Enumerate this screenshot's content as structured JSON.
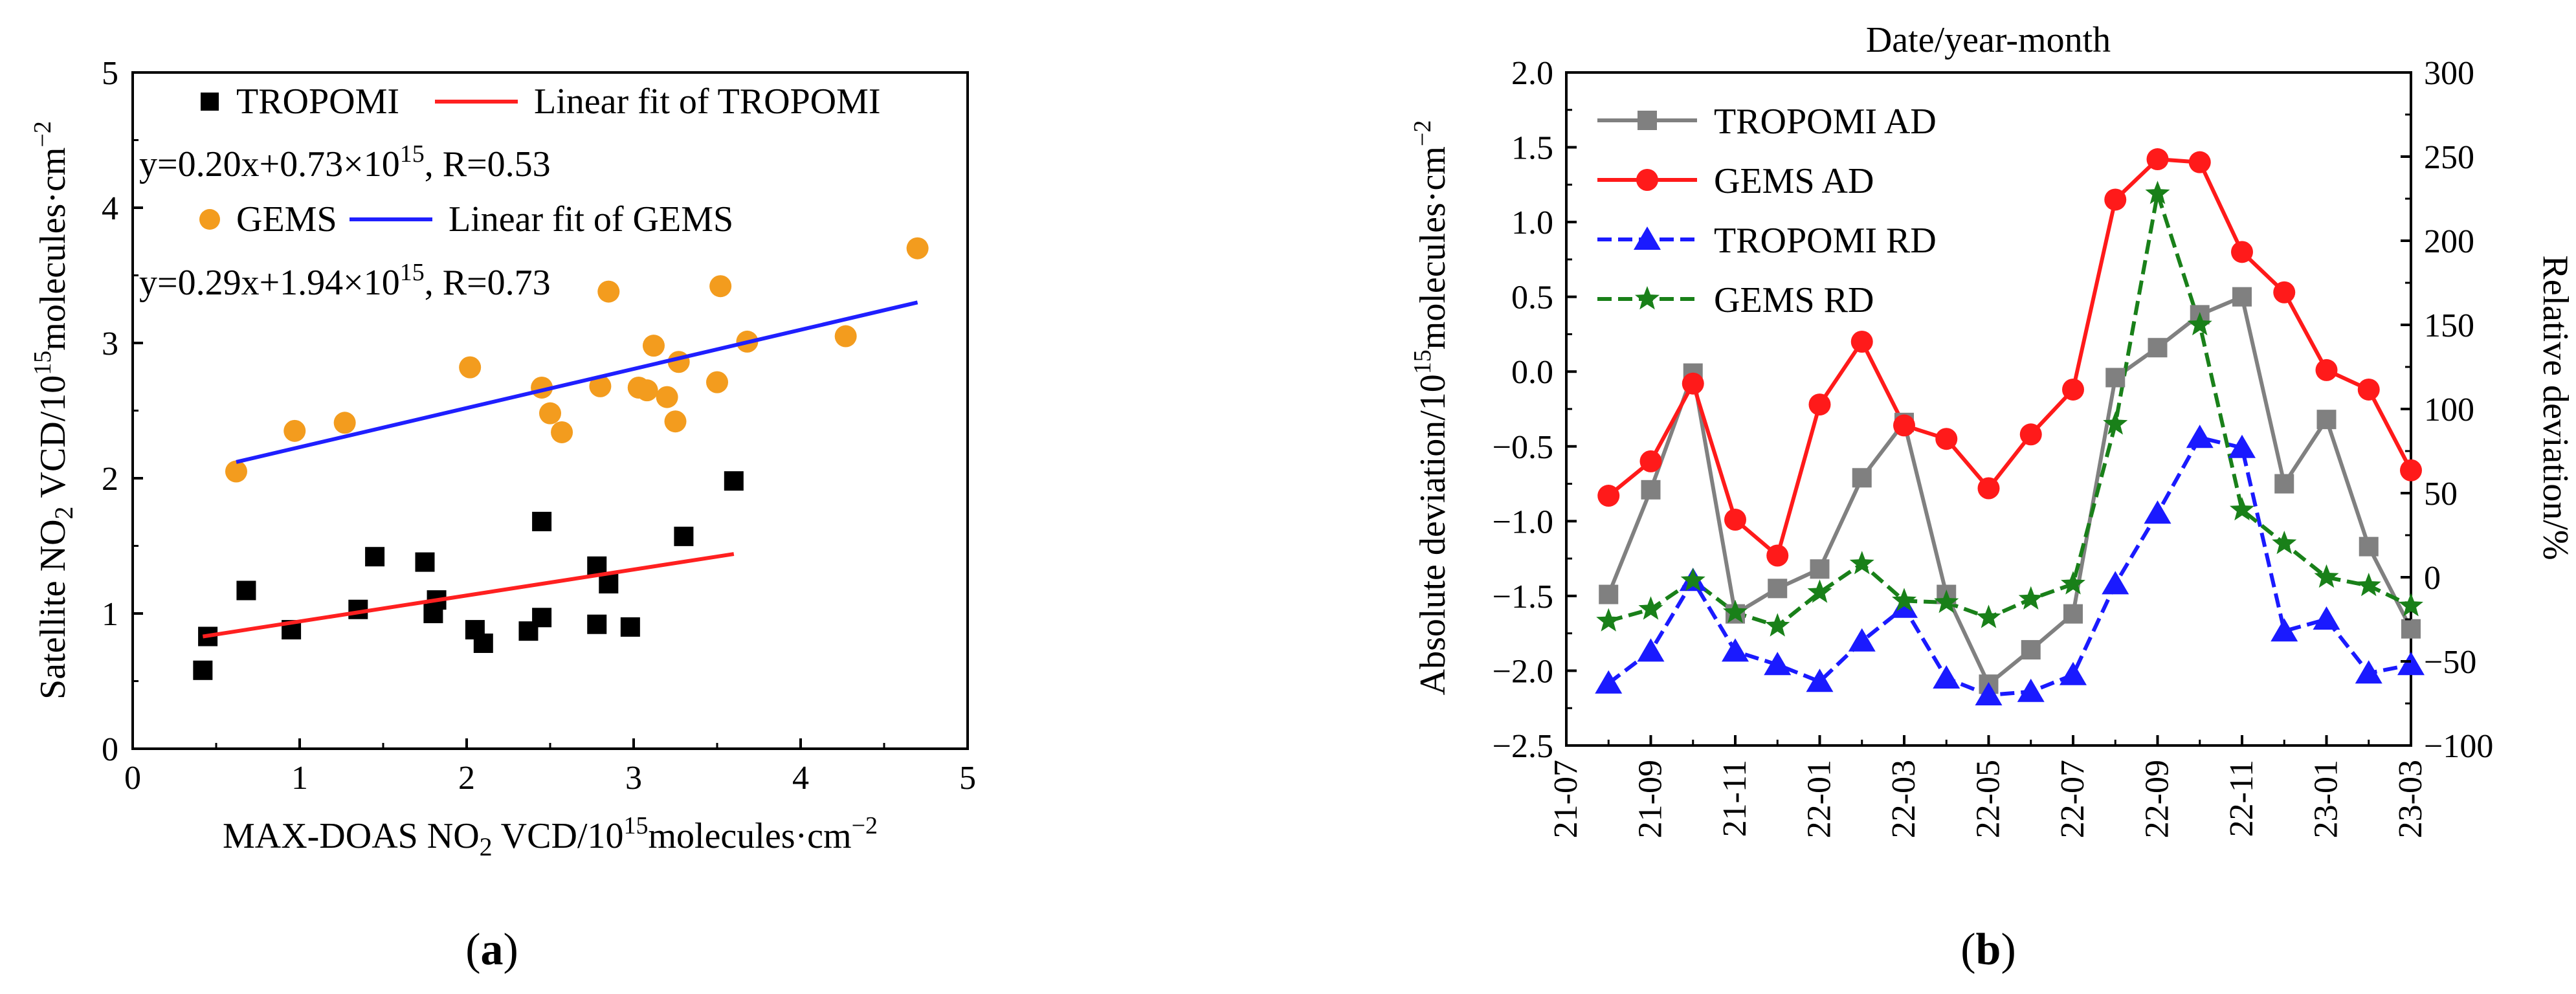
{
  "chart_data": [
    {
      "panel_label_prefix": "(",
      "panel_label": "a",
      "panel_label_suffix": ")",
      "type": "scatter",
      "xlabel": "MAX-DOAS NO",
      "xlabel_sub": "2",
      "xlabel_rest": " VCD/10",
      "xlabel_sup": "15",
      "xlabel_unit": "molecules·cm",
      "xlabel_unit_sup": "−2",
      "ylabel": "Satellite NO",
      "ylabel_sub": "2",
      "ylabel_rest": " VCD/10",
      "ylabel_sup": "15",
      "ylabel_unit": "molecules·cm",
      "ylabel_unit_sup": "−2",
      "xlim": [
        0,
        5
      ],
      "ylim": [
        0,
        5
      ],
      "xticks": [
        "0",
        "1",
        "2",
        "3",
        "4",
        "5"
      ],
      "yticks": [
        "0",
        "1",
        "2",
        "3",
        "4",
        "5"
      ],
      "series": [
        {
          "name": "TROPOMI",
          "color": "#000000",
          "marker": "square",
          "points": [
            [
              0.42,
              0.58
            ],
            [
              0.45,
              0.83
            ],
            [
              0.68,
              1.17
            ],
            [
              0.95,
              0.88
            ],
            [
              1.35,
              1.03
            ],
            [
              1.45,
              1.42
            ],
            [
              1.75,
              1.38
            ],
            [
              1.8,
              1.0
            ],
            [
              1.82,
              1.1
            ],
            [
              2.05,
              0.88
            ],
            [
              2.1,
              0.78
            ],
            [
              2.37,
              0.87
            ],
            [
              2.45,
              1.68
            ],
            [
              2.45,
              0.97
            ],
            [
              2.78,
              1.35
            ],
            [
              2.78,
              0.92
            ],
            [
              2.85,
              1.22
            ],
            [
              2.98,
              0.9
            ],
            [
              3.3,
              1.57
            ],
            [
              3.6,
              1.98
            ]
          ]
        },
        {
          "name": "GEMS",
          "color": "#f39c1e",
          "marker": "circle",
          "points": [
            [
              0.62,
              2.05
            ],
            [
              0.97,
              2.35
            ],
            [
              1.27,
              2.41
            ],
            [
              2.02,
              2.82
            ],
            [
              2.45,
              2.67
            ],
            [
              2.5,
              2.48
            ],
            [
              2.57,
              2.34
            ],
            [
              2.8,
              2.68
            ],
            [
              2.85,
              3.38
            ],
            [
              3.03,
              2.67
            ],
            [
              3.08,
              2.65
            ],
            [
              3.12,
              2.98
            ],
            [
              3.2,
              2.6
            ],
            [
              3.25,
              2.42
            ],
            [
              3.27,
              2.86
            ],
            [
              3.5,
              2.71
            ],
            [
              3.52,
              3.42
            ],
            [
              3.68,
              3.01
            ],
            [
              4.27,
              3.05
            ],
            [
              4.7,
              3.7
            ]
          ]
        }
      ],
      "fits": [
        {
          "name": "Linear fit of TROPOMI",
          "color": "#ff2020",
          "x": [
            0.42,
            3.6
          ],
          "y": [
            0.83,
            1.44
          ],
          "equation": "y=0.20x+0.73×10",
          "equation_sup": "15",
          "equation_rest": ", R=0.53"
        },
        {
          "name": "Linear fit of GEMS",
          "color": "#1f1fff",
          "x": [
            0.62,
            4.7
          ],
          "y": [
            2.12,
            3.3
          ],
          "equation": "y=0.29x+1.94×10",
          "equation_sup": "15",
          "equation_rest": ", R=0.73"
        }
      ]
    },
    {
      "panel_label_prefix": "(",
      "panel_label": "b",
      "panel_label_suffix": ")",
      "type": "line",
      "top_label": "Date/year-month",
      "ylabel_left": "Absolute deviation/10",
      "ylabel_left_sup": "15",
      "ylabel_left_unit": "molecules·cm",
      "ylabel_left_unit_sup": "−2",
      "ylabel_right": "Relative deviation/%",
      "ylim_left": [
        -2.5,
        2.0
      ],
      "ylim_right": [
        -100,
        300
      ],
      "yticks_left": [
        "−2.5",
        "−2.0",
        "−1.5",
        "−1.0",
        "−0.5",
        "0.0",
        "0.5",
        "1.0",
        "1.5",
        "2.0"
      ],
      "yticks_right": [
        "−100",
        "−50",
        "0",
        "50",
        "100",
        "150",
        "200",
        "250",
        "300"
      ],
      "x_start_index": 0,
      "x_end_index": 20,
      "xticks": [
        "21-07",
        "21-09",
        "21-11",
        "22-01",
        "22-03",
        "22-05",
        "22-07",
        "22-09",
        "22-11",
        "23-01",
        "23-03"
      ],
      "series": [
        {
          "name": "TROPOMI AD",
          "color": "#808080",
          "marker": "square",
          "axis": "left",
          "line_style": "solid",
          "values": [
            -1.49,
            -0.79,
            -0.01,
            -1.62,
            -1.45,
            -1.32,
            -0.71,
            -0.34,
            -1.49,
            -2.09,
            -1.86,
            -1.62,
            -0.04,
            0.16,
            0.38,
            0.5,
            -0.75,
            -0.32,
            -1.17,
            -1.72
          ]
        },
        {
          "name": "GEMS AD",
          "color": "#ff1a1a",
          "marker": "circle",
          "axis": "left",
          "line_style": "solid",
          "values": [
            -0.83,
            -0.6,
            -0.08,
            -0.99,
            -1.23,
            -0.22,
            0.2,
            -0.36,
            -0.45,
            -0.78,
            -0.42,
            -0.12,
            1.15,
            1.42,
            1.4,
            0.8,
            0.53,
            0.01,
            -0.12,
            -0.66
          ]
        },
        {
          "name": "TROPOMI RD",
          "color": "#1a1aff",
          "marker": "triangle",
          "axis": "right",
          "line_style": "dashed",
          "values": [
            -63,
            -44,
            -2,
            -44,
            -52,
            -62,
            -38,
            -18,
            -60,
            -70,
            -68,
            -58,
            -4,
            38,
            83,
            77,
            -32,
            -25,
            -57,
            -52
          ]
        },
        {
          "name": "GEMS RD",
          "color": "#198019",
          "marker": "star",
          "axis": "right",
          "line_style": "dashed",
          "values": [
            -26,
            -19,
            -2,
            -21,
            -29,
            -9,
            8,
            -14,
            -15,
            -24,
            -13,
            -4,
            91,
            228,
            150,
            40,
            20,
            0,
            -5,
            -17
          ]
        }
      ]
    }
  ]
}
